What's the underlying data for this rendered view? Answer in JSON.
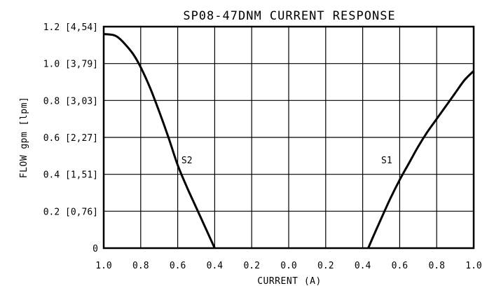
{
  "chart_data": {
    "type": "line",
    "title": "SP08-47DNM CURRENT RESPONSE",
    "xlabel": "CURRENT (A)",
    "ylabel": "FLOW gpm [lpm]",
    "x_tick_labels": [
      "1.0",
      "0.8",
      "0.6",
      "0.4",
      "0.2",
      "0.0",
      "0.2",
      "0.4",
      "0.6",
      "0.8",
      "1.0"
    ],
    "x_tick_values": [
      -1.0,
      -0.8,
      -0.6,
      -0.4,
      -0.2,
      0.0,
      0.2,
      0.4,
      0.6,
      0.8,
      1.0
    ],
    "y_tick_labels": [
      "0",
      "0.2 [0,76]",
      "0.4 [1,51]",
      "0.6 [2,27]",
      "0.8 [3,03]",
      "1.0 [3,79]",
      "1.2 [4,54]"
    ],
    "y_tick_values": [
      0,
      0.2,
      0.4,
      0.6,
      0.8,
      1.0,
      1.2
    ],
    "xlim": [
      -1.0,
      1.0
    ],
    "ylim": [
      0,
      1.2
    ],
    "grid": true,
    "series": [
      {
        "name": "S2",
        "points": [
          [
            -1.0,
            1.16
          ],
          [
            -0.95,
            1.155
          ],
          [
            -0.92,
            1.14
          ],
          [
            -0.88,
            1.1
          ],
          [
            -0.84,
            1.05
          ],
          [
            -0.8,
            0.98
          ],
          [
            -0.75,
            0.87
          ],
          [
            -0.7,
            0.74
          ],
          [
            -0.65,
            0.6
          ],
          [
            -0.6,
            0.45
          ],
          [
            -0.55,
            0.33
          ],
          [
            -0.5,
            0.22
          ],
          [
            -0.45,
            0.11
          ],
          [
            -0.4,
            0.0
          ]
        ]
      },
      {
        "name": "S1",
        "points": [
          [
            0.43,
            0.0
          ],
          [
            0.46,
            0.07
          ],
          [
            0.5,
            0.16
          ],
          [
            0.55,
            0.27
          ],
          [
            0.6,
            0.37
          ],
          [
            0.65,
            0.46
          ],
          [
            0.7,
            0.55
          ],
          [
            0.75,
            0.63
          ],
          [
            0.8,
            0.7
          ],
          [
            0.85,
            0.77
          ],
          [
            0.9,
            0.84
          ],
          [
            0.95,
            0.91
          ],
          [
            1.0,
            0.96
          ]
        ]
      }
    ],
    "series_label_points": {
      "S2": [
        -0.58,
        0.46
      ],
      "S1": [
        0.5,
        0.46
      ]
    },
    "colors": {
      "line": "#000000",
      "grid": "#000000",
      "background": "#ffffff"
    }
  }
}
